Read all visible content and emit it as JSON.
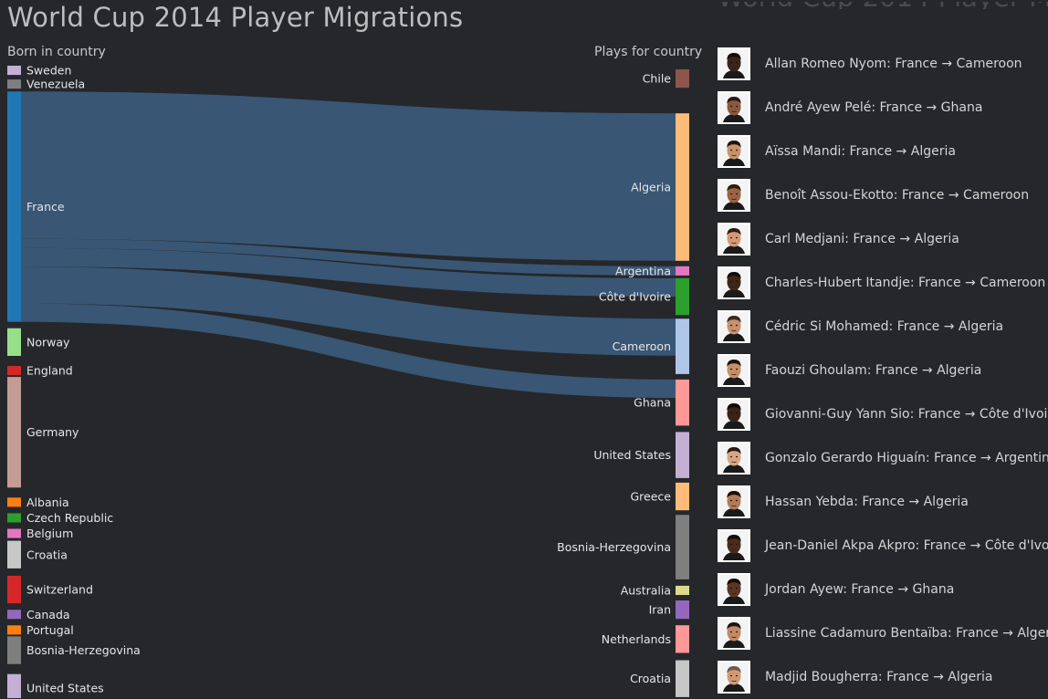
{
  "header": {
    "title": "World Cup 2014 Player Migrations",
    "born_label": "Born in country",
    "plays_label": "Plays for country"
  },
  "chart_data": {
    "type": "sankey",
    "title": "World Cup 2014 Player Migrations",
    "source_axis": "Born in country",
    "target_axis": "Plays for country",
    "sources": [
      {
        "name": "Sweden",
        "value": 1,
        "color": "#c5b0d5"
      },
      {
        "name": "Venezuela",
        "value": 1,
        "color": "#7f7f7f"
      },
      {
        "name": "France",
        "value": 25,
        "color": "#1f77b4"
      },
      {
        "name": "Norway",
        "value": 3,
        "color": "#98df8a"
      },
      {
        "name": "England",
        "value": 1,
        "color": "#d62728"
      },
      {
        "name": "Germany",
        "value": 12,
        "color": "#c49c94"
      },
      {
        "name": "Albania",
        "value": 1,
        "color": "#ff7f0e"
      },
      {
        "name": "Czech Republic",
        "value": 1,
        "color": "#2ca02c"
      },
      {
        "name": "Belgium",
        "value": 1,
        "color": "#e377c2"
      },
      {
        "name": "Croatia",
        "value": 3,
        "color": "#c7c7c7"
      },
      {
        "name": "Switzerland",
        "value": 3,
        "color": "#d62728"
      },
      {
        "name": "Canada",
        "value": 1,
        "color": "#9467bd"
      },
      {
        "name": "Portugal",
        "value": 1,
        "color": "#ff7f0e"
      },
      {
        "name": "Bosnia-Herzegovina",
        "value": 3,
        "color": "#7f7f7f"
      },
      {
        "name": "United States",
        "value": 3,
        "color": "#c5b0d5"
      }
    ],
    "targets": [
      {
        "name": "Chile",
        "value": 2,
        "color": "#8c564b"
      },
      {
        "name": "Algeria",
        "value": 16,
        "color": "#ffbb78"
      },
      {
        "name": "Argentina",
        "value": 1,
        "color": "#e377c2"
      },
      {
        "name": "Côte d'Ivoire",
        "value": 4,
        "color": "#2ca02c"
      },
      {
        "name": "Cameroon",
        "value": 6,
        "color": "#aec7e8"
      },
      {
        "name": "Ghana",
        "value": 5,
        "color": "#ff9896"
      },
      {
        "name": "United States",
        "value": 5,
        "color": "#c5b0d5"
      },
      {
        "name": "Greece",
        "value": 3,
        "color": "#ffbb78"
      },
      {
        "name": "Bosnia-Herzegovina",
        "value": 7,
        "color": "#7f7f7f"
      },
      {
        "name": "Australia",
        "value": 1,
        "color": "#dbdb8d"
      },
      {
        "name": "Iran",
        "value": 2,
        "color": "#9467bd"
      },
      {
        "name": "Netherlands",
        "value": 3,
        "color": "#ff9896"
      },
      {
        "name": "Croatia",
        "value": 4,
        "color": "#c7c7c7"
      }
    ],
    "highlighted_links": [
      {
        "source": "France",
        "target": "Algeria",
        "value": 16
      },
      {
        "source": "France",
        "target": "Argentina",
        "value": 1
      },
      {
        "source": "France",
        "target": "Côte d'Ivoire",
        "value": 2
      },
      {
        "source": "France",
        "target": "Cameroon",
        "value": 4
      },
      {
        "source": "France",
        "target": "Ghana",
        "value": 2
      }
    ],
    "link_color": "#3a5878"
  },
  "players": [
    {
      "name": "Allan Romeo Nyom: France → Cameroon",
      "skin": "#3b2418",
      "hair": "#120c08"
    },
    {
      "name": "André Ayew Pelé: France → Ghana",
      "skin": "#8a5a3c",
      "hair": "#2a1a10"
    },
    {
      "name": "Aïssa Mandi: France → Algeria",
      "skin": "#c8926a",
      "hair": "#1e1410"
    },
    {
      "name": "Benoît Assou-Ekotto: France → Cameroon",
      "skin": "#9a6444",
      "hair": "#2c1c10"
    },
    {
      "name": "Carl Medjani: France → Algeria",
      "skin": "#d49a78",
      "hair": "#2a1e16"
    },
    {
      "name": "Charles-Hubert Itandje: France → Cameroon",
      "skin": "#3e2618",
      "hair": "#110b07"
    },
    {
      "name": "Cédric Si Mohamed: France → Algeria",
      "skin": "#c89070",
      "hair": "#3a2a20"
    },
    {
      "name": "Faouzi Ghoulam: France → Algeria",
      "skin": "#c68e66",
      "hair": "#1c120c"
    },
    {
      "name": "Giovanni-Guy Yann Sio: France → Côte d'Ivoire",
      "skin": "#3a2216",
      "hair": "#0f0906"
    },
    {
      "name": "Gonzalo Gerardo Higuaín: France → Argentina",
      "skin": "#d8a584",
      "hair": "#2a1a12"
    },
    {
      "name": "Hassan Yebda: France → Algeria",
      "skin": "#b27c58",
      "hair": "#1a100a"
    },
    {
      "name": "Jean-Daniel Akpa Akpro: France → Côte d'Ivoire",
      "skin": "#4a2c1c",
      "hair": "#140c08"
    },
    {
      "name": "Jordan Ayew: France → Ghana",
      "skin": "#5a3624",
      "hair": "#150d08"
    },
    {
      "name": "Liassine Cadamuro Bentaïba: France → Algeria",
      "skin": "#c08a66",
      "hair": "#1e140e"
    },
    {
      "name": "Madjid Bougherra: France → Algeria",
      "skin": "#d09a76",
      "hair": "#6a5a50"
    }
  ]
}
